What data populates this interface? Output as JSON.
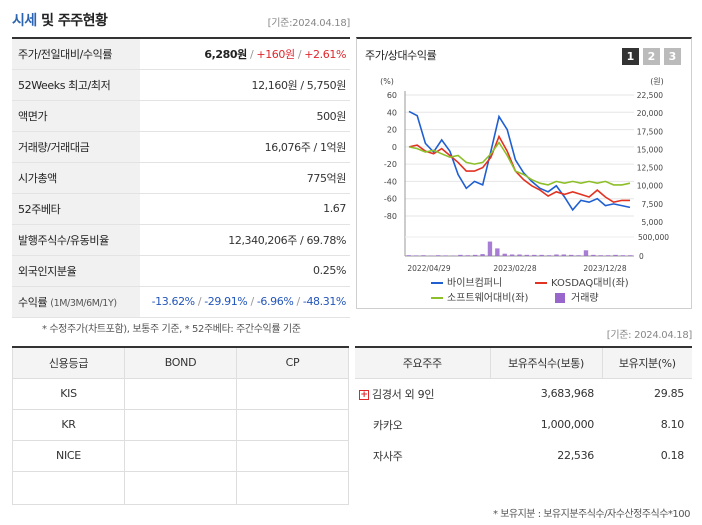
{
  "header": {
    "title_accent": "시세",
    "title_rest": " 및 주주현황",
    "asof": "[기준:2024.04.18]"
  },
  "market": {
    "rows": [
      {
        "label": "주가/전일대비/수익률",
        "price": "6,280원",
        "change": "+160원",
        "return": "+2.61%"
      },
      {
        "label": "52Weeks 최고/최저",
        "value": "12,160원 / 5,750원"
      },
      {
        "label": "액면가",
        "value": "500원"
      },
      {
        "label": "거래량/거래대금",
        "value": "16,076주 / 1억원"
      },
      {
        "label": "시가총액",
        "value": "775억원"
      },
      {
        "label": "52주베타",
        "value": "1.67"
      },
      {
        "label": "발행주식수/유동비율",
        "value": "12,340,206주 / 69.78%"
      },
      {
        "label": "외국인지분율",
        "value": "0.25%"
      }
    ],
    "returns": {
      "label": "수익률",
      "sublabel": "(1M/3M/6M/1Y)",
      "values": [
        "-13.62%",
        "-29.91%",
        "-6.96%",
        "-48.31%"
      ]
    },
    "note": "* 수정주가(차트포함), 보통주 기준, * 52주베타: 주간수익률 기준"
  },
  "chart_panel": {
    "title": "주가/상대수익률",
    "tabs": [
      "1",
      "2",
      "3"
    ],
    "active_tab": "1",
    "unit_left": "(%)",
    "unit_right": "(원)"
  },
  "chart_data": {
    "type": "line",
    "left_axis": {
      "ticks": [
        60,
        40,
        20,
        0,
        -20,
        -40,
        -60,
        -80
      ],
      "ylim": [
        -80,
        60
      ]
    },
    "right_axis": {
      "ticks": [
        "22,500",
        "20,000",
        "17,500",
        "15,000",
        "12,500",
        "10,000",
        "7,500",
        "5,000"
      ],
      "ylim": [
        5000,
        22500
      ]
    },
    "volume_axis": {
      "ticks": [
        "500,000",
        "0"
      ],
      "ylim": [
        0,
        500000
      ]
    },
    "x_ticks": [
      "2022/04/29",
      "2023/02/28",
      "2023/12/28"
    ],
    "series": [
      {
        "name": "바이브컴퍼니",
        "color": "#1f5fd1",
        "values": [
          41,
          36,
          4,
          -6,
          8,
          -5,
          -32,
          -48,
          -40,
          -44,
          -5,
          35,
          20,
          -15,
          -30,
          -40,
          -48,
          -52,
          -45,
          -58,
          -73,
          -62,
          -64,
          -60,
          -68,
          -66,
          -68,
          -70
        ]
      },
      {
        "name": "KOSDAQ대비(좌)",
        "color": "#e23222",
        "values": [
          0,
          2,
          -5,
          -8,
          -2,
          -10,
          -18,
          -28,
          -28,
          -24,
          -12,
          12,
          -5,
          -28,
          -38,
          -45,
          -50,
          -57,
          -52,
          -55,
          -52,
          -55,
          -58,
          -50,
          -58,
          -64,
          -62,
          -62
        ]
      },
      {
        "name": "소프트웨어대비(좌)",
        "color": "#8dbf29",
        "values": [
          0,
          -2,
          -6,
          -4,
          -8,
          -12,
          -10,
          -18,
          -20,
          -18,
          -8,
          5,
          -10,
          -28,
          -32,
          -38,
          -42,
          -44,
          -40,
          -42,
          -40,
          -42,
          -40,
          -42,
          -40,
          -44,
          -44,
          -42
        ]
      }
    ],
    "volume": {
      "name": "거래량",
      "color": "#9966cc",
      "values": [
        20000,
        15000,
        20000,
        10000,
        20000,
        15000,
        10000,
        30000,
        20000,
        30000,
        50000,
        380000,
        200000,
        60000,
        40000,
        40000,
        30000,
        30000,
        30000,
        20000,
        40000,
        40000,
        30000,
        20000,
        150000,
        30000,
        20000,
        20000,
        30000,
        20000,
        20000
      ]
    }
  },
  "credit": {
    "headers": [
      "신용등급",
      "BOND",
      "CP"
    ],
    "rows": [
      {
        "agency": "KIS",
        "bond": "",
        "cp": ""
      },
      {
        "agency": "KR",
        "bond": "",
        "cp": ""
      },
      {
        "agency": "NICE",
        "bond": "",
        "cp": ""
      },
      {
        "agency": "",
        "bond": "",
        "cp": ""
      }
    ]
  },
  "holders": {
    "asof": "[기준: 2024.04.18]",
    "headers": [
      "주요주주",
      "보유주식수(보통)",
      "보유지분(%)"
    ],
    "rows": [
      {
        "name": "김경서 외 9인",
        "shares": "3,683,968",
        "pct": "29.85",
        "expandable": true
      },
      {
        "name": "카카오",
        "shares": "1,000,000",
        "pct": "8.10",
        "expandable": false
      },
      {
        "name": "자사주",
        "shares": "22,536",
        "pct": "0.18",
        "expandable": false
      }
    ],
    "note": "* 보유지분 : 보유지분주식수/자수산정주식수*100"
  }
}
